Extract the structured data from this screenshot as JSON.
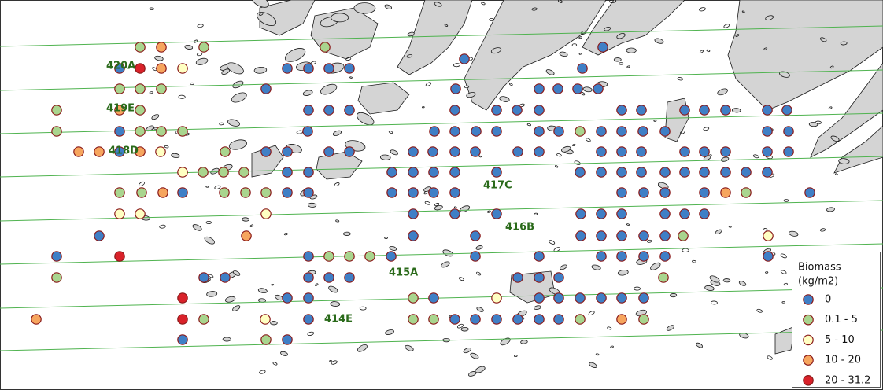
{
  "map": {
    "transect_labels": [
      "420A",
      "419E",
      "418D",
      "417C",
      "416B",
      "415A",
      "414E"
    ],
    "legend": {
      "title": [
        "Biomass",
        "(kg/m2)"
      ],
      "classes": [
        {
          "label": "0",
          "color": "#3f7fc6"
        },
        {
          "label": "0.1 - 5",
          "color": "#a9d58e"
        },
        {
          "label": "5 - 10",
          "color": "#ffffc2"
        },
        {
          "label": "10 - 20",
          "color": "#f6a55e"
        },
        {
          "label": "20 - 31.2",
          "color": "#d9222a"
        }
      ]
    }
  }
}
